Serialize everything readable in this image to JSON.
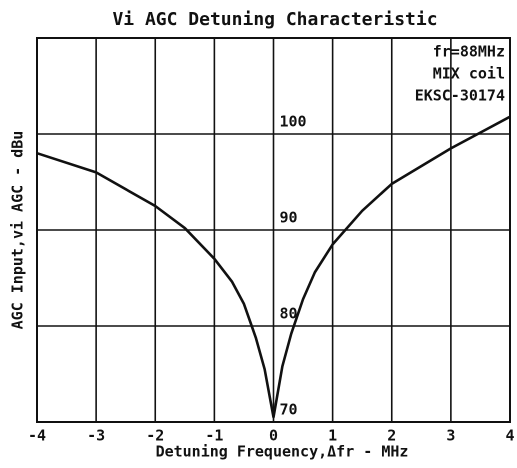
{
  "chart_data": {
    "type": "line",
    "title": "Vi AGC Detuning Characteristic",
    "x_label": "Detuning Frequency,Δfr - MHz",
    "y_label": "AGC Input,vi AGC - dBu",
    "annotations": [
      "fr=88MHz",
      "MIX coil",
      "EKSC-30174"
    ],
    "x": [
      -4,
      -3,
      -2,
      -1.5,
      -1,
      -0.7,
      -0.5,
      -0.3,
      -0.15,
      0,
      0.15,
      0.3,
      0.5,
      0.7,
      1,
      1.5,
      2,
      3,
      4
    ],
    "series": [
      {
        "name": "AGC",
        "color": "#111111",
        "values": [
          98,
          96,
          92.5,
          90.2,
          87,
          84.6,
          82.3,
          78.8,
          75.5,
          70.5,
          75.8,
          79.2,
          82.8,
          85.6,
          88.5,
          92,
          94.8,
          98.5,
          101.8
        ]
      }
    ],
    "xlim": [
      -4,
      4
    ],
    "xticks": [
      -4,
      -3,
      -2,
      -1,
      0,
      1,
      2,
      3,
      4
    ],
    "ylim": [
      70,
      110
    ],
    "yticks": [
      70,
      80,
      90,
      100
    ],
    "grid": true
  }
}
